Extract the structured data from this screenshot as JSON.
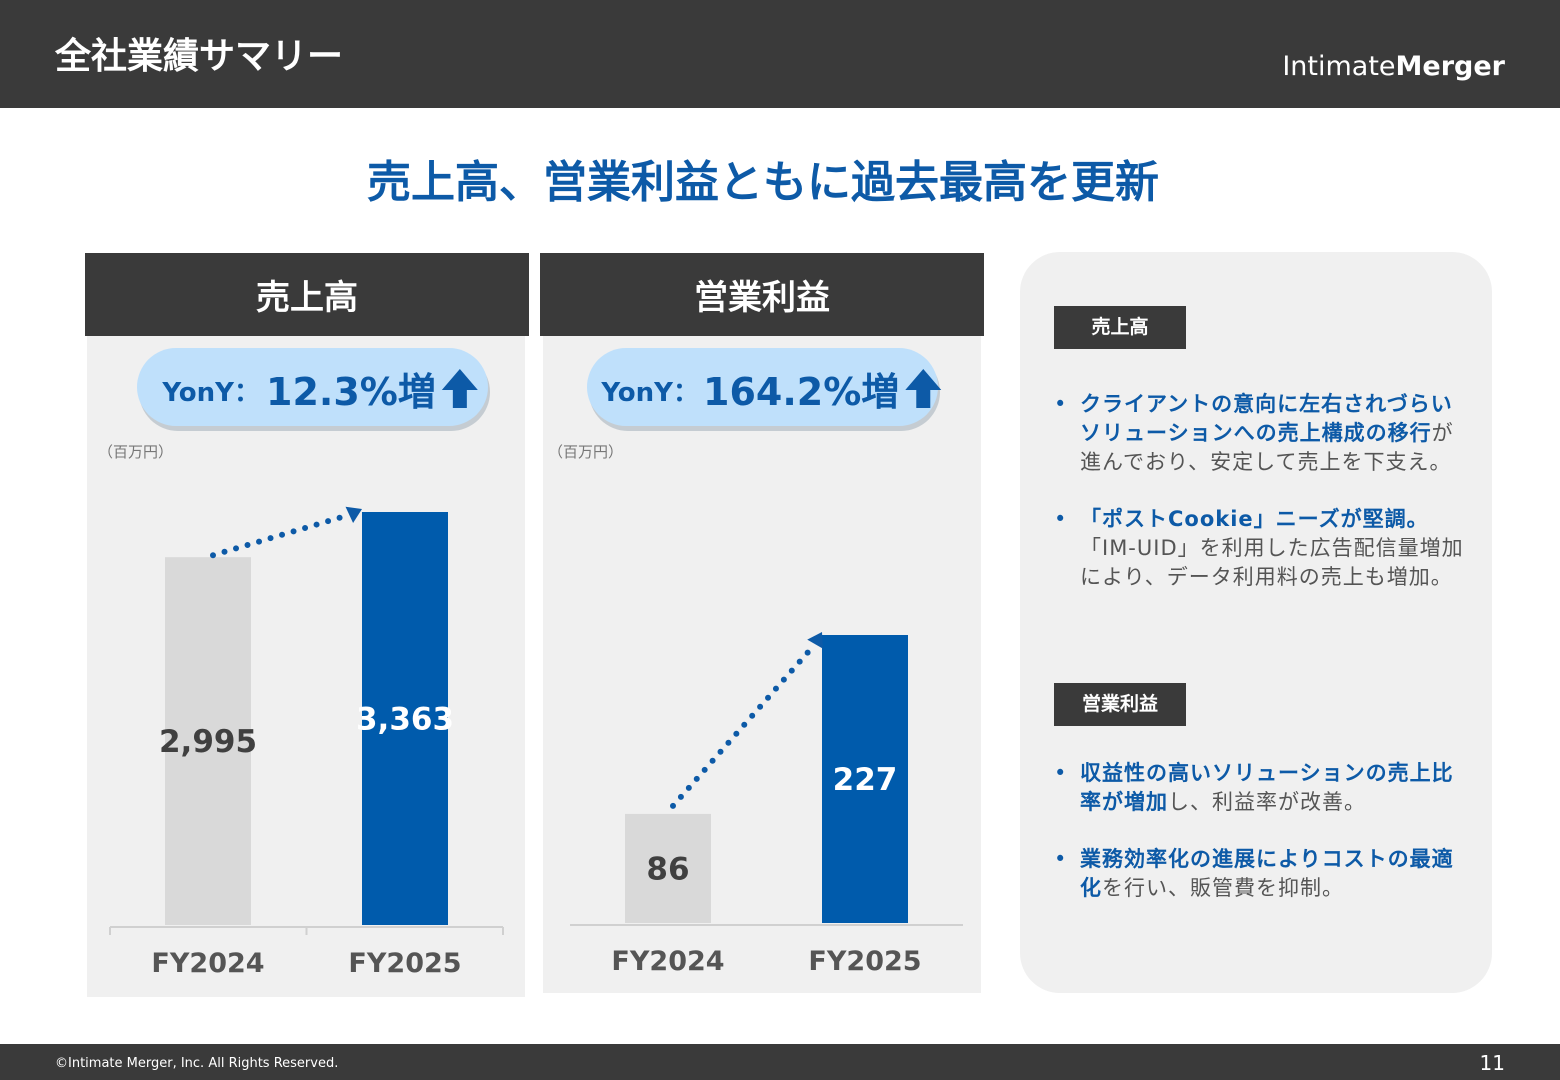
{
  "header": {
    "title": "全社業績サマリー",
    "logo_light": "Intimate",
    "logo_bold": "Merger"
  },
  "headline": "売上高、営業利益ともに過去最高を更新",
  "chart_data": [
    {
      "type": "bar",
      "title": "売上高",
      "yoy_label": "YonY：",
      "yoy_value": "12.3%増",
      "unit": "（百万円）",
      "categories": [
        "FY2024",
        "FY2025"
      ],
      "values": [
        2995,
        3363
      ],
      "value_labels": [
        "2,995",
        "3,363"
      ],
      "colors": [
        "#d9d9d9",
        "#005bac"
      ]
    },
    {
      "type": "bar",
      "title": "営業利益",
      "yoy_label": "YonY：",
      "yoy_value": "164.2%増",
      "unit": "（百万円）",
      "categories": [
        "FY2024",
        "FY2025"
      ],
      "values": [
        86,
        227
      ],
      "colors": [
        "#d9d9d9",
        "#005bac"
      ]
    }
  ],
  "side_panel": {
    "sections": [
      {
        "heading": "売上高",
        "bullets": [
          {
            "bold": "クライアントの意向に左右されづらいソリューションへの売上構成の移行",
            "text": "が進んでおり、安定して売上を下支え。"
          },
          {
            "bold": "「ポストCookie」ニーズが堅調。",
            "text": "「IM-UID」を利用した広告配信量増加により、データ利用料の売上も増加。"
          }
        ]
      },
      {
        "heading": "営業利益",
        "bullets": [
          {
            "bold": "収益性の高いソリューションの売上比率が増加",
            "text": "し、利益率が改善。"
          },
          {
            "bold": "業務効率化の進展によりコストの最適化",
            "text": "を行い、販管費を抑制。"
          }
        ]
      }
    ]
  },
  "footer": {
    "copyright": "©Intimate Merger, Inc. All Rights Reserved.",
    "page": 11
  }
}
